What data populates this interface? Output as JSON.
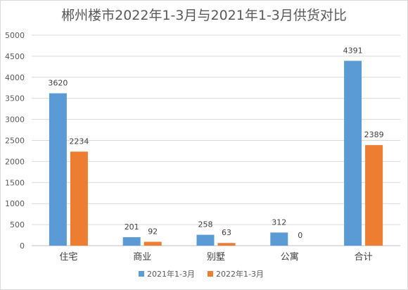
{
  "chart_data": {
    "type": "bar",
    "title": "郴州楼市2022年1-3月与2021年1-3月供货对比",
    "categories": [
      "住宅",
      "商业",
      "别墅",
      "公寓",
      "合计"
    ],
    "series": [
      {
        "name": "2021年1-3月",
        "values": [
          3620,
          201,
          258,
          312,
          4391
        ],
        "color": "#5B9BD5"
      },
      {
        "name": "2022年1-3月",
        "values": [
          2234,
          92,
          63,
          0,
          2389
        ],
        "color": "#ED7D31"
      }
    ],
    "ylim": [
      0,
      5000
    ],
    "yticks": [
      0,
      500,
      1000,
      1500,
      2000,
      2500,
      3000,
      3500,
      4000,
      4500,
      5000
    ],
    "grid": true,
    "legend": "bottom",
    "data_labels": true
  }
}
